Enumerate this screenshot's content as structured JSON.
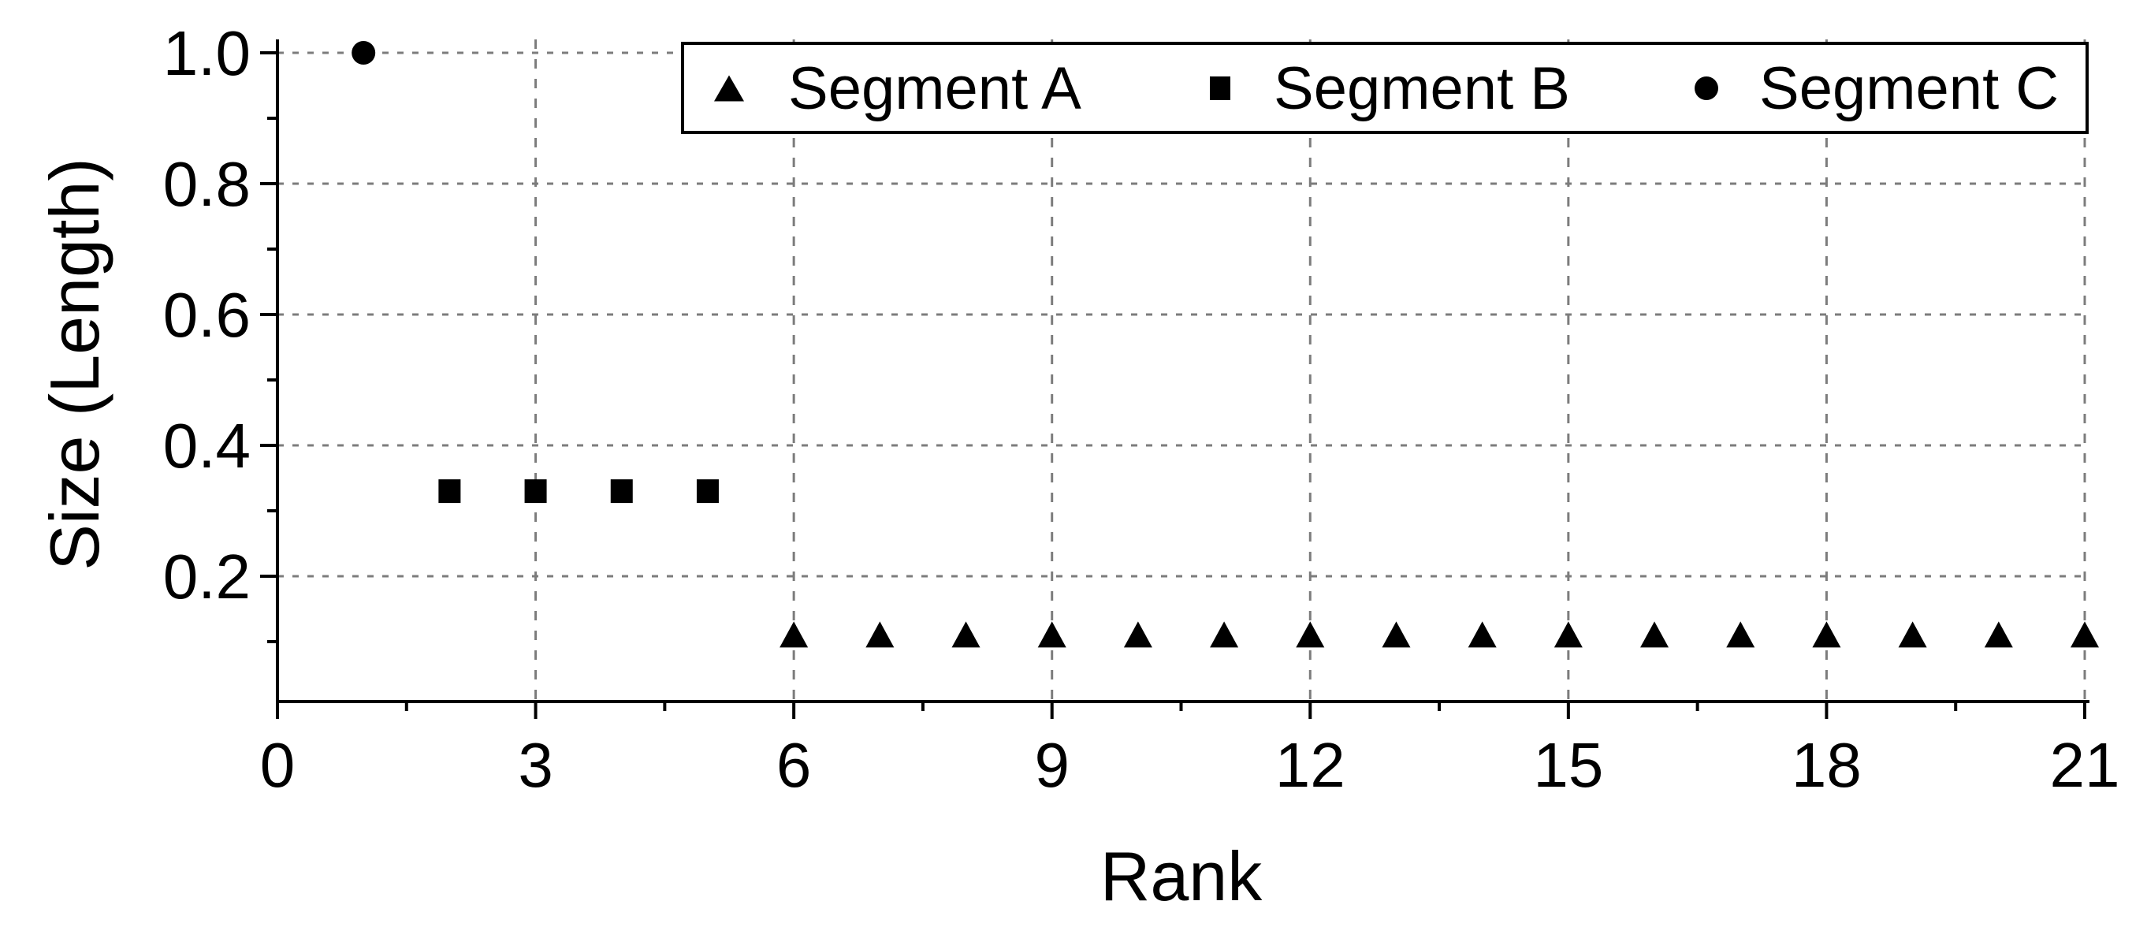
{
  "figure": {
    "background": "#ffffff"
  },
  "chart_data": {
    "type": "scatter",
    "title": "",
    "xlabel": "Rank",
    "ylabel": "Size (Length)",
    "xlim": [
      0,
      21
    ],
    "ylim": [
      0,
      1.012
    ],
    "x_major_ticks": [
      0,
      3,
      6,
      9,
      12,
      15,
      18,
      21
    ],
    "x_tick_labels": [
      "0",
      "3",
      "6",
      "9",
      "12",
      "15",
      "18",
      "21"
    ],
    "x_minor_ticks": [
      1.5,
      4.5,
      7.5,
      10.5,
      13.5,
      16.5,
      19.5
    ],
    "y_major_ticks": [
      0.2,
      0.4,
      0.6,
      0.8,
      1.0
    ],
    "y_tick_labels": [
      "0.2",
      "0.4",
      "0.6",
      "0.8",
      "1.0"
    ],
    "y_minor_ticks": [
      0.1,
      0.3,
      0.5,
      0.7,
      0.9
    ],
    "grid": {
      "show": true,
      "vertical_at": [
        3,
        6,
        9,
        12,
        15,
        18,
        21
      ],
      "horizontal_at": [
        0.2,
        0.4,
        0.6,
        0.8,
        1.0
      ],
      "color": "#7c7c7c",
      "vertical_style": "dashed",
      "horizontal_style": "dotted"
    },
    "axis_color": "#000000",
    "marker_color": "#000000",
    "legend": {
      "position": "top-right",
      "border": true,
      "background": "#ffffff",
      "entries": [
        {
          "label": "Segment A",
          "marker": "triangle"
        },
        {
          "label": "Segment B",
          "marker": "square"
        },
        {
          "label": "Segment C",
          "marker": "circle"
        }
      ]
    },
    "series": [
      {
        "name": "Segment A",
        "marker": "triangle",
        "points": [
          [
            6,
            0.111
          ],
          [
            7,
            0.111
          ],
          [
            8,
            0.111
          ],
          [
            9,
            0.111
          ],
          [
            10,
            0.111
          ],
          [
            11,
            0.111
          ],
          [
            12,
            0.111
          ],
          [
            13,
            0.111
          ],
          [
            14,
            0.111
          ],
          [
            15,
            0.111
          ],
          [
            16,
            0.111
          ],
          [
            17,
            0.111
          ],
          [
            18,
            0.111
          ],
          [
            19,
            0.111
          ],
          [
            20,
            0.111
          ],
          [
            21,
            0.111
          ]
        ]
      },
      {
        "name": "Segment B",
        "marker": "square",
        "points": [
          [
            2,
            0.33
          ],
          [
            3,
            0.33
          ],
          [
            4,
            0.33
          ],
          [
            5,
            0.33
          ]
        ]
      },
      {
        "name": "Segment C",
        "marker": "circle",
        "points": [
          [
            1,
            1.0
          ]
        ]
      }
    ]
  }
}
